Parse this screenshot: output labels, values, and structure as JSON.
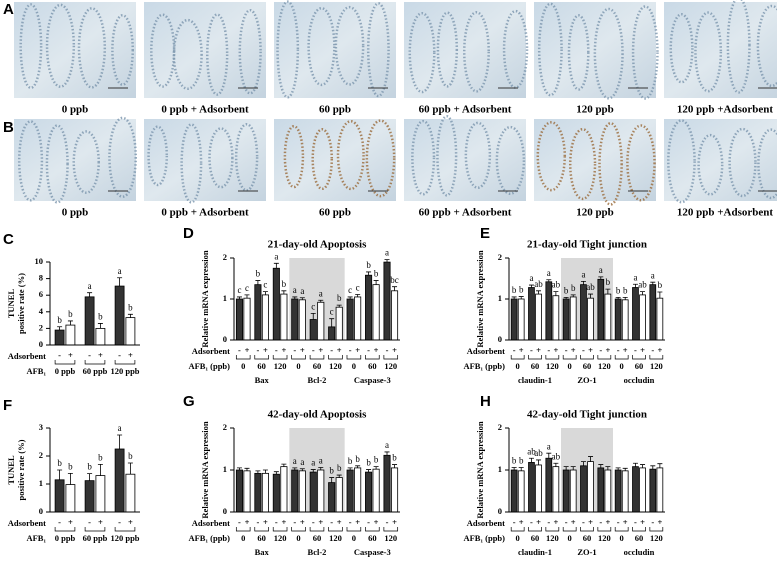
{
  "histology": [
    {
      "panel": "A",
      "captions": [
        "0 ppb",
        "0 ppb + Adsorbent",
        "60 ppb",
        "60 ppb + Adsorbent",
        "120 ppb",
        "120 ppb +Adsorbent"
      ]
    },
    {
      "panel": "B",
      "captions": [
        "0 ppb",
        "0 ppb + Adsorbent",
        "60 ppb",
        "60 ppb + Adsorbent",
        "120 ppb",
        "120 ppb +Adsorbent"
      ]
    }
  ],
  "chart_data": [
    {
      "type": "bar",
      "panel": "C",
      "ylabel": [
        "TUNEL",
        "positive rate (%)"
      ],
      "ylim": [
        0,
        10
      ],
      "yticks": [
        0,
        2,
        4,
        6,
        8,
        10
      ],
      "row_labels": [
        "Adsorbent",
        "AFB₁"
      ],
      "adsorbent": [
        "-",
        "+"
      ],
      "dose_labels": [
        "0 ppb",
        "60 ppb",
        "120 ppb"
      ],
      "colors": [
        "#333333",
        "#ffffff"
      ],
      "groups": [
        {
          "values": [
            1.8,
            2.4,
            5.8,
            2.0,
            7.1,
            3.3
          ],
          "errors": [
            0.4,
            0.5,
            0.5,
            0.6,
            1.0,
            0.4
          ],
          "letters": [
            "b",
            "b",
            "a",
            "b",
            "a",
            "b"
          ]
        }
      ]
    },
    {
      "type": "bar",
      "panel": "D",
      "title": "21-day-old Apoptosis",
      "ylabel": [
        "Relative mRNA expression"
      ],
      "ylim": [
        0,
        2
      ],
      "yticks": [
        0,
        1,
        2
      ],
      "row_labels": [
        "Adsorbent",
        "AFB₁ (ppb)"
      ],
      "adsorbent": [
        "-",
        "+"
      ],
      "dose_labels": [
        "0",
        "60",
        "120"
      ],
      "colors": [
        "#333333",
        "#ffffff"
      ],
      "shaded_group": 1,
      "groups": [
        {
          "name": "Bax",
          "values": [
            1.0,
            1.02,
            1.35,
            1.1,
            1.75,
            1.12
          ],
          "errors": [
            0.05,
            0.08,
            0.1,
            0.08,
            0.12,
            0.08
          ],
          "letters": [
            "c",
            "c",
            "b",
            "c",
            "a",
            "b"
          ]
        },
        {
          "name": "Bcl-2",
          "values": [
            1.0,
            0.98,
            0.5,
            0.92,
            0.32,
            0.8
          ],
          "errors": [
            0.05,
            0.05,
            0.15,
            0.05,
            0.2,
            0.05
          ],
          "letters": [
            "a",
            "a",
            "c",
            "a",
            "c",
            "b"
          ]
        },
        {
          "name": "Caspase-3",
          "values": [
            1.0,
            1.05,
            1.58,
            1.35,
            1.9,
            1.2
          ],
          "errors": [
            0.05,
            0.06,
            0.08,
            0.1,
            0.06,
            0.1
          ],
          "letters": [
            "c",
            "c",
            "b",
            "b",
            "a",
            "bc"
          ]
        }
      ]
    },
    {
      "type": "bar",
      "panel": "E",
      "title": "21-day-old Tight junction",
      "ylabel": [
        "Relative mRNA expression"
      ],
      "ylim": [
        0,
        2
      ],
      "yticks": [
        0,
        1,
        2
      ],
      "row_labels": [
        "Adsorbent",
        "AFB₁ (ppb)"
      ],
      "adsorbent": [
        "-",
        "+"
      ],
      "dose_labels": [
        "0",
        "60",
        "120"
      ],
      "colors": [
        "#333333",
        "#ffffff"
      ],
      "shaded_group": 1,
      "groups": [
        {
          "name": "claudin-1",
          "values": [
            1.0,
            1.0,
            1.28,
            1.12,
            1.42,
            1.08
          ],
          "errors": [
            0.05,
            0.06,
            0.06,
            0.08,
            0.05,
            0.1
          ],
          "letters": [
            "b",
            "b",
            "a",
            "ab",
            "a",
            "ab"
          ]
        },
        {
          "name": "ZO-1",
          "values": [
            1.0,
            1.05,
            1.35,
            1.02,
            1.48,
            1.12
          ],
          "errors": [
            0.04,
            0.05,
            0.08,
            0.1,
            0.06,
            0.12
          ],
          "letters": [
            "b",
            "b",
            "a",
            "ab",
            "a",
            "b"
          ]
        },
        {
          "name": "occludin",
          "values": [
            1.0,
            0.98,
            1.28,
            1.1,
            1.35,
            1.02
          ],
          "errors": [
            0.04,
            0.06,
            0.08,
            0.08,
            0.06,
            0.15
          ],
          "letters": [
            "b",
            "b",
            "a",
            "ab",
            "a",
            "b"
          ]
        }
      ]
    },
    {
      "type": "bar",
      "panel": "F",
      "ylabel": [
        "TUNEL",
        "positive rate (%)"
      ],
      "ylim": [
        0,
        3
      ],
      "yticks": [
        0,
        1,
        2,
        3
      ],
      "row_labels": [
        "Adsorbent",
        "AFB₁"
      ],
      "adsorbent": [
        "-",
        "+"
      ],
      "dose_labels": [
        "0 ppb",
        "60 ppb",
        "120 ppb"
      ],
      "colors": [
        "#333333",
        "#ffffff"
      ],
      "groups": [
        {
          "values": [
            1.15,
            0.98,
            1.12,
            1.3,
            2.25,
            1.35
          ],
          "errors": [
            0.35,
            0.4,
            0.25,
            0.4,
            0.5,
            0.4
          ],
          "letters": [
            "b",
            "b",
            "b",
            "b",
            "a",
            "b"
          ]
        }
      ]
    },
    {
      "type": "bar",
      "panel": "G",
      "title": "42-day-old Apoptosis",
      "ylabel": [
        "Relative mRNA expression"
      ],
      "ylim": [
        0,
        2
      ],
      "yticks": [
        0,
        1,
        2
      ],
      "row_labels": [
        "Adsorbent",
        "AFB₁ (ppb)"
      ],
      "adsorbent": [
        "-",
        "+"
      ],
      "dose_labels": [
        "0",
        "60",
        "120"
      ],
      "colors": [
        "#333333",
        "#ffffff"
      ],
      "shaded_group": 1,
      "groups": [
        {
          "name": "Bax",
          "values": [
            1.0,
            0.98,
            0.92,
            0.92,
            0.9,
            1.08
          ],
          "errors": [
            0.05,
            0.06,
            0.06,
            0.08,
            0.06,
            0.06
          ],
          "letters": [
            null,
            null,
            null,
            null,
            null,
            null
          ]
        },
        {
          "name": "Bcl-2",
          "values": [
            1.0,
            0.98,
            0.95,
            1.0,
            0.7,
            0.82
          ],
          "errors": [
            0.05,
            0.05,
            0.06,
            0.06,
            0.12,
            0.06
          ],
          "letters": [
            "a",
            "a",
            "a",
            "a",
            "b",
            "b"
          ]
        },
        {
          "name": "Caspase-3",
          "values": [
            1.0,
            1.05,
            0.95,
            1.02,
            1.35,
            1.05
          ],
          "errors": [
            0.05,
            0.05,
            0.06,
            0.06,
            0.08,
            0.08
          ],
          "letters": [
            "b",
            "b",
            "b",
            "b",
            "a",
            "b"
          ]
        }
      ]
    },
    {
      "type": "bar",
      "panel": "H",
      "title": "42-day-old Tight junction",
      "ylabel": [
        "Relative mRNA expression"
      ],
      "ylim": [
        0,
        2
      ],
      "yticks": [
        0,
        1,
        2
      ],
      "row_labels": [
        "Adsorbent",
        "AFB₁ (ppb)"
      ],
      "adsorbent": [
        "-",
        "+"
      ],
      "dose_labels": [
        "0",
        "60",
        "120"
      ],
      "colors": [
        "#333333",
        "#ffffff"
      ],
      "shaded_group": 1,
      "groups": [
        {
          "name": "claudin-1",
          "values": [
            1.0,
            0.98,
            1.18,
            1.12,
            1.28,
            1.08
          ],
          "errors": [
            0.06,
            0.08,
            0.1,
            0.12,
            0.12,
            0.08
          ],
          "letters": [
            "b",
            "b",
            "ab",
            "ab",
            "a",
            "ab"
          ]
        },
        {
          "name": "ZO-1",
          "values": [
            1.0,
            1.0,
            1.1,
            1.2,
            1.05,
            1.0
          ],
          "errors": [
            0.08,
            0.08,
            0.1,
            0.12,
            0.08,
            0.08
          ],
          "letters": [
            null,
            null,
            null,
            null,
            null,
            null
          ]
        },
        {
          "name": "occludin",
          "values": [
            1.0,
            0.98,
            1.08,
            1.05,
            1.02,
            1.05
          ],
          "errors": [
            0.05,
            0.06,
            0.08,
            0.08,
            0.08,
            0.1
          ],
          "letters": [
            null,
            null,
            null,
            null,
            null,
            null
          ]
        }
      ]
    }
  ]
}
